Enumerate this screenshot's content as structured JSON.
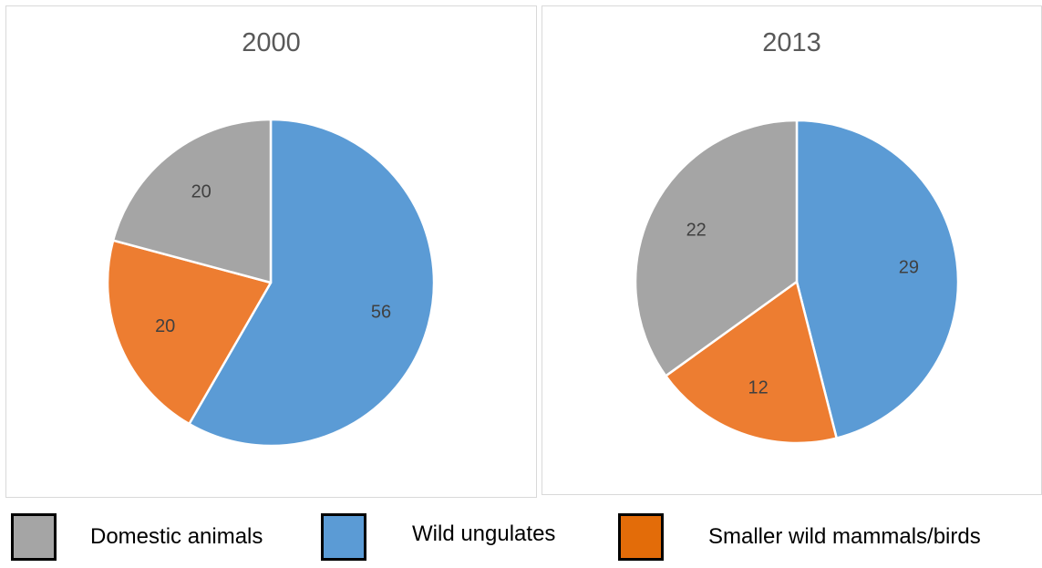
{
  "chart_data": [
    {
      "type": "pie",
      "title": "2000",
      "categories": [
        "Wild ungulates",
        "Smaller wild mammals/birds",
        "Domestic animals"
      ],
      "values": [
        56,
        20,
        20
      ],
      "labels": [
        "56",
        "20",
        "20"
      ],
      "colors": [
        "#5b9bd5",
        "#ed7d31",
        "#a5a5a5"
      ],
      "start_angle_deg": 0,
      "direction": "clockwise"
    },
    {
      "type": "pie",
      "title": "2013",
      "categories": [
        "Wild ungulates",
        "Smaller wild mammals/birds",
        "Domestic animals"
      ],
      "values": [
        29,
        12,
        22
      ],
      "labels": [
        "29",
        "12",
        "22"
      ],
      "colors": [
        "#5b9bd5",
        "#ed7d31",
        "#a5a5a5"
      ],
      "start_angle_deg": 0,
      "direction": "clockwise"
    }
  ],
  "legend": {
    "items": [
      {
        "label": "Domestic animals",
        "color": "#a5a5a5"
      },
      {
        "label": "Wild ungulates",
        "color": "#5b9bd5"
      },
      {
        "label": "Smaller wild mammals/birds",
        "color": "#e36c09"
      }
    ]
  }
}
